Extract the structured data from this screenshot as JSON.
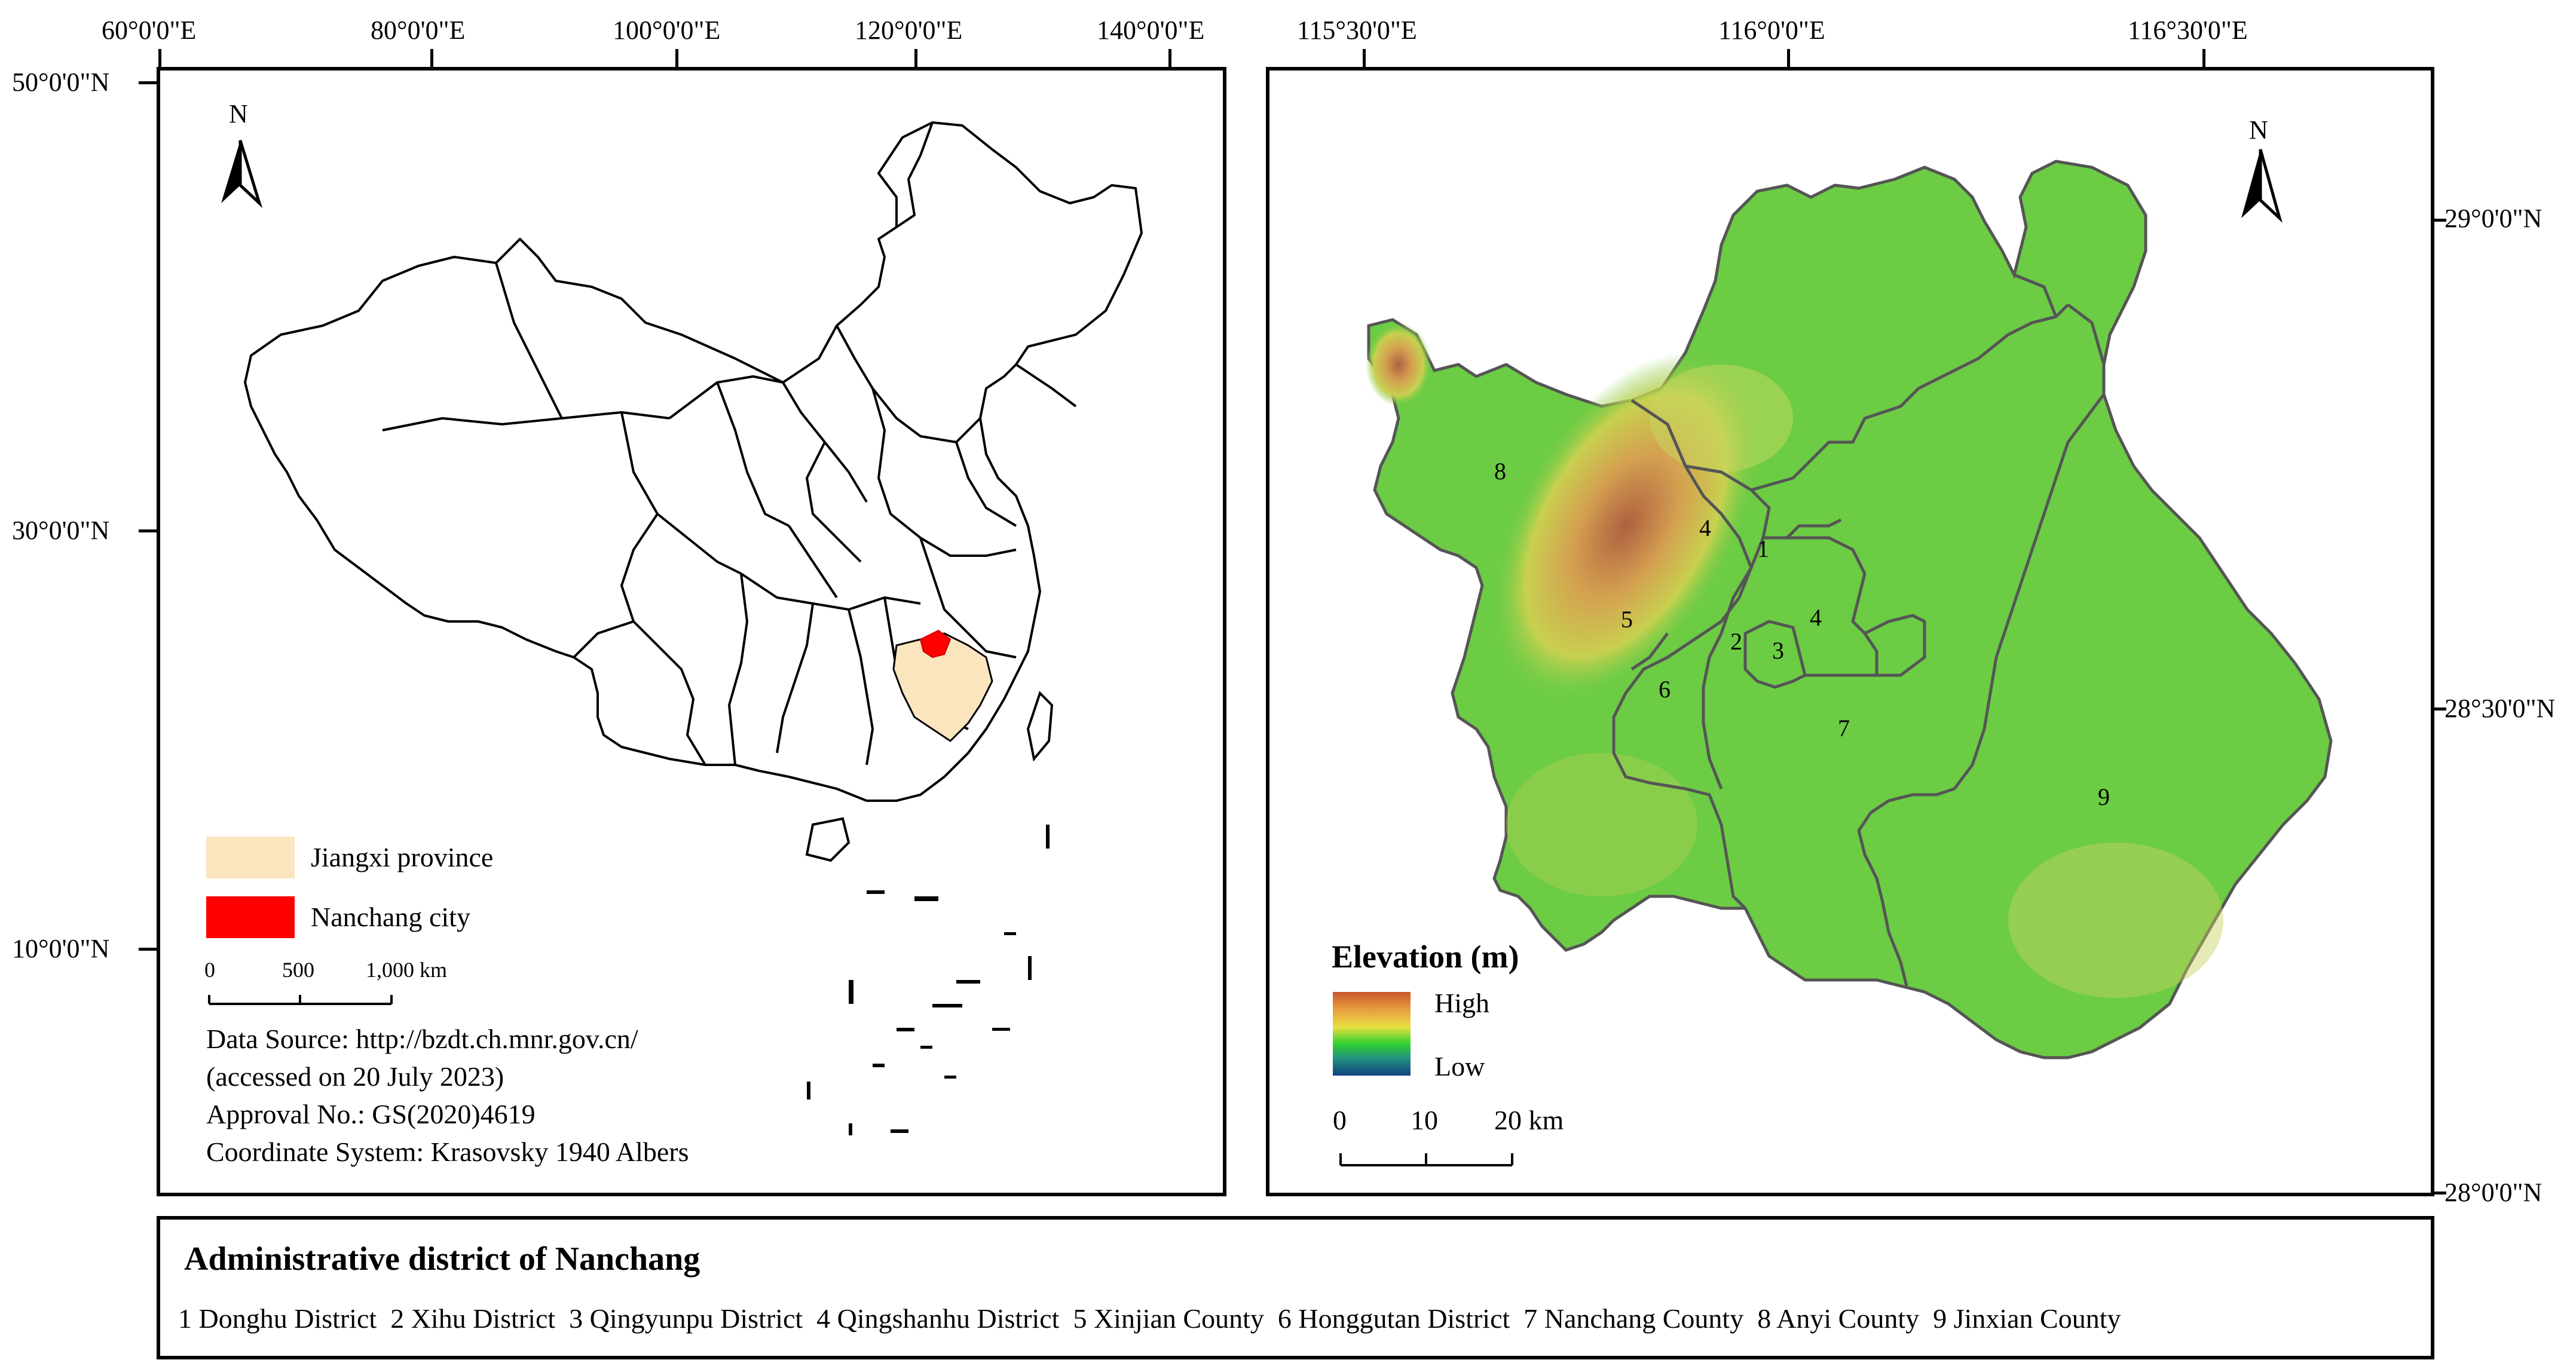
{
  "left_map": {
    "lon_labels": [
      "60°0'0\"E",
      "80°0'0\"E",
      "100°0'0\"E",
      "120°0'0\"E",
      "140°0'0\"E"
    ],
    "lat_labels": [
      "50°0'0\"N",
      "30°0'0\"N",
      "10°0'0\"N"
    ],
    "north_label": "N",
    "legend": [
      {
        "label": "Jiangxi province",
        "color": "#fbe5bf"
      },
      {
        "label": "Nanchang city",
        "color": "#ff0000"
      }
    ],
    "scale": {
      "labels": [
        "0",
        "500",
        "1,000 km"
      ]
    },
    "info": [
      "Data Source: http://bzdt.ch.mnr.gov.cn/",
      "(accessed on 20 July 2023)",
      "Approval No.: GS(2020)4619",
      "Coordinate System: Krasovsky 1940 Albers"
    ]
  },
  "right_map": {
    "lon_labels": [
      "115°30'0\"E",
      "116°0'0\"E",
      "116°30'0\"E"
    ],
    "lat_labels": [
      "29°0'0\"N",
      "28°30'0\"N",
      "28°0'0\"N"
    ],
    "north_label": "N",
    "elevation_legend": {
      "title": "Elevation (m)",
      "high": "High",
      "low": "Low"
    },
    "scale": {
      "labels": [
        "0",
        "10",
        "20 km"
      ]
    },
    "district_numbers": [
      "1",
      "2",
      "3",
      "4",
      "4",
      "5",
      "6",
      "7",
      "8",
      "9"
    ]
  },
  "bottom": {
    "title": "Administrative district of Nanchang",
    "districts": "1 Donghu District  2 Xihu District  3 Qingyunpu District  4 Qingshanhu District  5 Xinjian County  6 Honggutan District  7 Nanchang County  8 Anyi County  9 Jinxian County"
  }
}
